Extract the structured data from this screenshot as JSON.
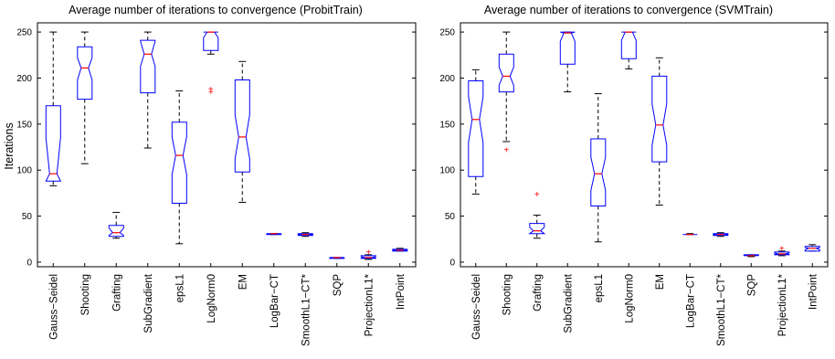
{
  "chart_data": [
    {
      "type": "boxplot",
      "title": "Average number of iterations to convergence (ProbitTrain)",
      "ylabel": "Iterations",
      "ylim": [
        -5,
        260
      ],
      "yticks": [
        0,
        50,
        100,
        150,
        200,
        250
      ],
      "grid": false,
      "categories": [
        "Gauss−Seidel",
        "Shooting",
        "Grafting",
        "SubGradient",
        "epsL1",
        "LogNorm0",
        "EM",
        "LogBar−CT",
        "SmoothL1−CT*",
        "SQP",
        "ProjectionL1*",
        "IntPoint"
      ],
      "boxes": [
        {
          "min": 83,
          "q1": 88,
          "median": 96,
          "q3": 170,
          "max": 250,
          "notch": [
            80,
            135
          ],
          "outliers": []
        },
        {
          "min": 107,
          "q1": 177,
          "median": 211,
          "q3": 234,
          "max": 250,
          "notch": [
            198,
            222
          ],
          "outliers": []
        },
        {
          "min": 26,
          "q1": 28,
          "median": 32,
          "q3": 40,
          "max": 54,
          "notch": [
            29,
            37
          ],
          "outliers": []
        },
        {
          "min": 124,
          "q1": 184,
          "median": 226,
          "q3": 241,
          "max": 250,
          "notch": [
            213,
            240
          ],
          "outliers": []
        },
        {
          "min": 20,
          "q1": 64,
          "median": 116,
          "q3": 152,
          "max": 186,
          "notch": [
            95,
            136
          ],
          "outliers": []
        },
        {
          "min": 226,
          "q1": 230,
          "median": 250,
          "q3": 250,
          "max": 250,
          "notch": [
            244,
            250
          ],
          "outliers": [
            185,
            188
          ]
        },
        {
          "min": 65,
          "q1": 98,
          "median": 136,
          "q3": 198,
          "max": 218,
          "notch": [
            112,
            160
          ],
          "outliers": []
        },
        {
          "min": 30,
          "q1": 30,
          "median": 31,
          "q3": 31,
          "max": 31,
          "notch": [
            30.5,
            31
          ],
          "outliers": []
        },
        {
          "min": 28,
          "q1": 29,
          "median": 30,
          "q3": 31,
          "max": 32,
          "notch": [
            29.5,
            30.5
          ],
          "outliers": []
        },
        {
          "min": 4,
          "q1": 4,
          "median": 5,
          "q3": 5,
          "max": 5,
          "notch": [
            4.5,
            5
          ],
          "outliers": []
        },
        {
          "min": 3,
          "q1": 4,
          "median": 5,
          "q3": 7,
          "max": 8,
          "notch": [
            4.5,
            6
          ],
          "outliers": [
            11
          ]
        },
        {
          "min": 12,
          "q1": 12,
          "median": 13,
          "q3": 14,
          "max": 15,
          "notch": [
            12.5,
            13.5
          ],
          "outliers": []
        }
      ]
    },
    {
      "type": "boxplot",
      "title": "Average number of iterations to convergence (SVMTrain)",
      "ylabel": "",
      "ylim": [
        -5,
        260
      ],
      "yticks": [
        0,
        50,
        100,
        150,
        200,
        250
      ],
      "grid": false,
      "categories": [
        "Gauss−Seidel",
        "Shooting",
        "Grafting",
        "SubGradient",
        "epsL1",
        "LogNorm0",
        "EM",
        "LogBar−CT",
        "SmoothL1−CT*",
        "SQP",
        "ProjectionL1*",
        "IntPoint"
      ],
      "boxes": [
        {
          "min": 74,
          "q1": 93,
          "median": 155,
          "q3": 197,
          "max": 209,
          "notch": [
            130,
            180
          ],
          "outliers": []
        },
        {
          "min": 131,
          "q1": 185,
          "median": 202,
          "q3": 226,
          "max": 250,
          "notch": [
            192,
            212
          ],
          "outliers": [
            122
          ]
        },
        {
          "min": 26,
          "q1": 31,
          "median": 34,
          "q3": 42,
          "max": 51,
          "notch": [
            31,
            38
          ],
          "outliers": [
            74
          ]
        },
        {
          "min": 185,
          "q1": 215,
          "median": 249,
          "q3": 250,
          "max": 250,
          "notch": [
            240,
            250
          ],
          "outliers": []
        },
        {
          "min": 22,
          "q1": 61,
          "median": 96,
          "q3": 134,
          "max": 183,
          "notch": [
            78,
            114
          ],
          "outliers": []
        },
        {
          "min": 210,
          "q1": 221,
          "median": 250,
          "q3": 250,
          "max": 250,
          "notch": [
            241,
            250
          ],
          "outliers": []
        },
        {
          "min": 62,
          "q1": 109,
          "median": 149,
          "q3": 202,
          "max": 222,
          "notch": [
            127,
            172
          ],
          "outliers": []
        },
        {
          "min": 30,
          "q1": 30,
          "median": 30,
          "q3": 30,
          "max": 31,
          "notch": [
            29.8,
            30.2
          ],
          "outliers": []
        },
        {
          "min": 28,
          "q1": 29,
          "median": 30,
          "q3": 31,
          "max": 32,
          "notch": [
            29.5,
            30.5
          ],
          "outliers": []
        },
        {
          "min": 6,
          "q1": 7,
          "median": 7,
          "q3": 8,
          "max": 8,
          "notch": [
            6.8,
            7.2
          ],
          "outliers": []
        },
        {
          "min": 7,
          "q1": 8,
          "median": 9,
          "q3": 11,
          "max": 12,
          "notch": [
            8.5,
            10
          ],
          "outliers": [
            15
          ]
        },
        {
          "min": 12,
          "q1": 12,
          "median": 15,
          "q3": 17,
          "max": 19,
          "notch": [
            13.5,
            16
          ],
          "outliers": []
        }
      ]
    }
  ]
}
